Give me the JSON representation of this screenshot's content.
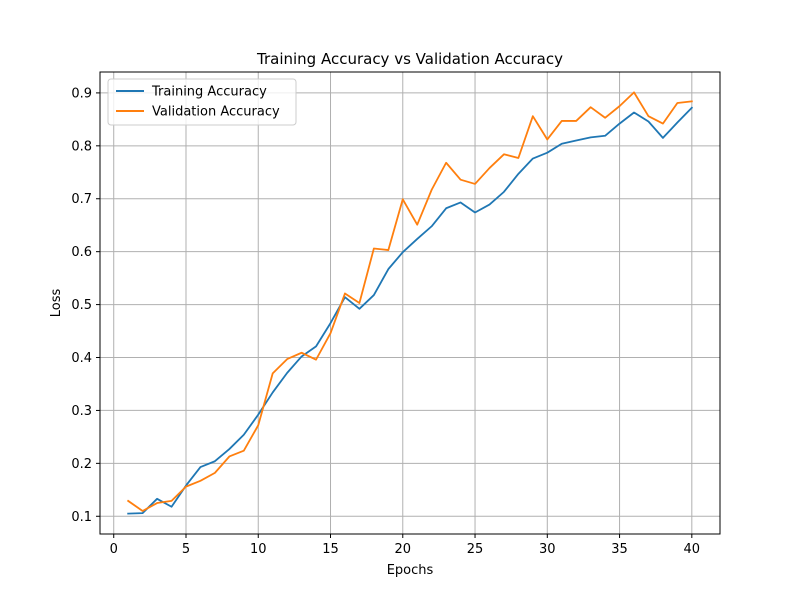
{
  "chart_data": {
    "type": "line",
    "title": "Training Accuracy vs Validation Accuracy",
    "xlabel": "Epochs",
    "ylabel": "Loss",
    "xlim": [
      -0.95,
      41.95
    ],
    "ylim": [
      0.0665,
      0.9395
    ],
    "xticks": [
      0,
      5,
      10,
      15,
      20,
      25,
      30,
      35,
      40
    ],
    "yticks": [
      0.1,
      0.2,
      0.3,
      0.4,
      0.5,
      0.6,
      0.7,
      0.8,
      0.9
    ],
    "grid": true,
    "legend": {
      "placement": "top-left"
    },
    "x": [
      1,
      2,
      3,
      4,
      5,
      6,
      7,
      8,
      9,
      10,
      11,
      12,
      13,
      14,
      15,
      16,
      17,
      18,
      19,
      20,
      21,
      22,
      23,
      24,
      25,
      26,
      27,
      28,
      29,
      30,
      31,
      32,
      33,
      34,
      35,
      36,
      37,
      38,
      39,
      40
    ],
    "series": [
      {
        "name": "Training Accuracy",
        "color": "#1f77b4",
        "values": [
          0.105,
          0.106,
          0.133,
          0.118,
          0.158,
          0.193,
          0.204,
          0.227,
          0.254,
          0.292,
          0.334,
          0.371,
          0.402,
          0.421,
          0.465,
          0.514,
          0.492,
          0.518,
          0.567,
          0.599,
          0.624,
          0.648,
          0.682,
          0.693,
          0.674,
          0.689,
          0.713,
          0.747,
          0.776,
          0.787,
          0.804,
          0.81,
          0.816,
          0.819,
          0.842,
          0.863,
          0.846,
          0.815,
          0.844,
          0.872
        ]
      },
      {
        "name": "Validation Accuracy",
        "color": "#ff7f0e",
        "values": [
          0.129,
          0.11,
          0.125,
          0.129,
          0.156,
          0.167,
          0.182,
          0.213,
          0.224,
          0.272,
          0.37,
          0.397,
          0.409,
          0.396,
          0.446,
          0.521,
          0.503,
          0.606,
          0.603,
          0.699,
          0.651,
          0.717,
          0.768,
          0.736,
          0.728,
          0.758,
          0.784,
          0.777,
          0.856,
          0.812,
          0.847,
          0.847,
          0.873,
          0.853,
          0.875,
          0.901,
          0.856,
          0.842,
          0.881,
          0.884
        ]
      }
    ]
  }
}
